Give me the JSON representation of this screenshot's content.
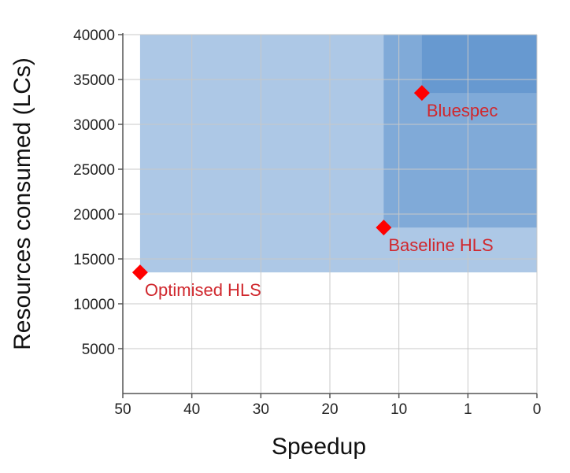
{
  "chart_data": {
    "type": "scatter",
    "title": "",
    "xlabel": "Speedup",
    "ylabel": "Resources consumed (LCs)",
    "x_ticks": [
      "50",
      "40",
      "30",
      "20",
      "10",
      "1",
      "0"
    ],
    "y_ticks": [
      40000,
      35000,
      30000,
      25000,
      20000,
      15000,
      10000,
      5000
    ],
    "ylim": [
      0,
      40000
    ],
    "grid": true,
    "marker_color": "#ff0000",
    "label_color": "#d0282e",
    "region_color": "#4a86c8",
    "points": [
      {
        "label": "Optimised HLS",
        "speedup_tick_position": 47.5,
        "resources": 13500
      },
      {
        "label": "Baseline HLS",
        "speedup_tick_position": 12.2,
        "resources": 18500
      },
      {
        "label": "Bluespec",
        "speedup_tick_position": 7.0,
        "resources": 33500
      }
    ]
  }
}
